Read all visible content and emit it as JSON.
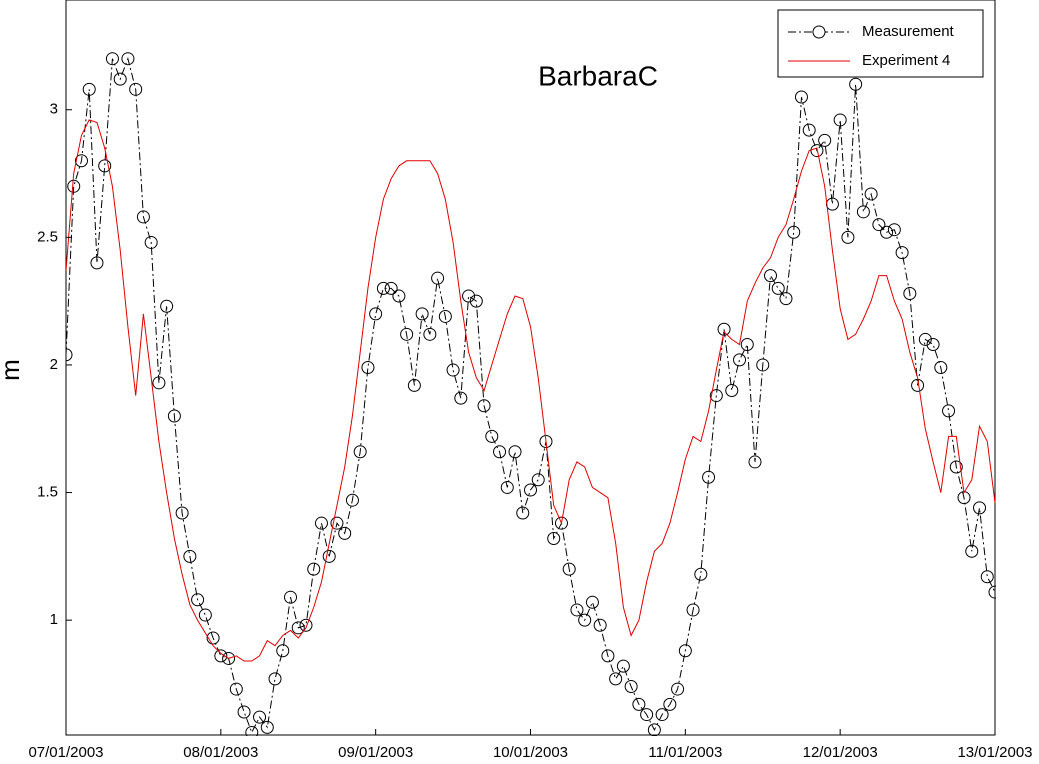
{
  "chart_data": {
    "type": "line",
    "title": "BarbaraC",
    "ylabel": "m",
    "x": [
      0,
      0.05,
      0.1,
      0.15,
      0.2,
      0.25,
      0.3,
      0.35,
      0.4,
      0.45,
      0.5,
      0.55,
      0.6,
      0.65,
      0.7,
      0.75,
      0.8,
      0.85,
      0.9,
      0.95,
      1,
      1.05,
      1.1,
      1.15,
      1.2,
      1.25,
      1.3,
      1.35,
      1.4,
      1.45,
      1.5,
      1.55,
      1.6,
      1.65,
      1.7,
      1.75,
      1.8,
      1.85,
      1.9,
      1.95,
      2,
      2.05,
      2.1,
      2.15,
      2.2,
      2.25,
      2.3,
      2.35,
      2.4,
      2.45,
      2.5,
      2.55,
      2.6,
      2.65,
      2.7,
      2.75,
      2.8,
      2.85,
      2.9,
      2.95,
      3,
      3.05,
      3.1,
      3.15,
      3.2,
      3.25,
      3.3,
      3.35,
      3.4,
      3.45,
      3.5,
      3.55,
      3.6,
      3.65,
      3.7,
      3.75,
      3.8,
      3.85,
      3.9,
      3.95,
      4,
      4.05,
      4.1,
      4.15,
      4.2,
      4.25,
      4.3,
      4.35,
      4.4,
      4.45,
      4.5,
      4.55,
      4.6,
      4.65,
      4.7,
      4.75,
      4.8,
      4.85,
      4.9,
      4.95,
      5,
      5.05,
      5.1,
      5.15,
      5.2,
      5.25,
      5.3,
      5.35,
      5.4,
      5.45,
      5.5,
      5.55,
      5.6,
      5.65,
      5.7,
      5.75,
      5.8,
      5.85,
      5.9,
      5.95,
      6
    ],
    "series": [
      {
        "name": "Measurement",
        "color": "#000000",
        "linestyle": "dash-dot",
        "marker": "circle",
        "values": [
          2.04,
          2.7,
          2.8,
          3.08,
          2.4,
          2.78,
          3.2,
          3.12,
          3.2,
          3.08,
          2.58,
          2.48,
          1.93,
          2.23,
          1.8,
          1.42,
          1.25,
          1.08,
          1.02,
          0.93,
          0.86,
          0.85,
          0.73,
          0.64,
          0.56,
          0.62,
          0.58,
          0.77,
          0.88,
          1.09,
          0.97,
          0.98,
          1.2,
          1.38,
          1.25,
          1.38,
          1.34,
          1.47,
          1.66,
          1.99,
          2.2,
          2.3,
          2.3,
          2.27,
          2.12,
          1.92,
          2.2,
          2.12,
          2.34,
          2.19,
          1.98,
          1.87,
          2.27,
          2.25,
          1.84,
          1.72,
          1.66,
          1.52,
          1.66,
          1.42,
          1.51,
          1.55,
          1.7,
          1.32,
          1.38,
          1.2,
          1.04,
          1.0,
          1.07,
          0.98,
          0.86,
          0.77,
          0.82,
          0.74,
          0.67,
          0.63,
          0.57,
          0.63,
          0.67,
          0.73,
          0.88,
          1.04,
          1.18,
          1.56,
          1.88,
          2.14,
          1.9,
          2.02,
          2.08,
          1.62,
          2.0,
          2.35,
          2.3,
          2.26,
          2.52,
          3.05,
          2.92,
          2.84,
          2.88,
          2.63,
          2.96,
          2.5,
          3.1,
          2.6,
          2.67,
          2.55,
          2.52,
          2.53,
          2.44,
          2.28,
          1.92,
          2.1,
          2.08,
          1.99,
          1.82,
          1.6,
          1.48,
          1.27,
          1.44,
          1.17,
          1.11
        ]
      },
      {
        "name": "Experiment 4",
        "color": "#e00000",
        "linestyle": "solid",
        "values": [
          2.37,
          2.75,
          2.9,
          2.96,
          2.95,
          2.85,
          2.7,
          2.45,
          2.15,
          1.88,
          2.2,
          1.95,
          1.7,
          1.5,
          1.32,
          1.18,
          1.06,
          1.0,
          0.95,
          0.9,
          0.87,
          0.85,
          0.86,
          0.84,
          0.84,
          0.86,
          0.92,
          0.9,
          0.94,
          0.96,
          0.93,
          0.97,
          1.05,
          1.15,
          1.3,
          1.45,
          1.6,
          1.8,
          2.05,
          2.3,
          2.5,
          2.65,
          2.73,
          2.78,
          2.8,
          2.8,
          2.8,
          2.8,
          2.75,
          2.65,
          2.48,
          2.25,
          2.05,
          1.95,
          1.9,
          2.0,
          2.1,
          2.2,
          2.27,
          2.26,
          2.15,
          1.95,
          1.7,
          1.45,
          1.38,
          1.55,
          1.62,
          1.6,
          1.52,
          1.5,
          1.48,
          1.3,
          1.05,
          0.94,
          1.0,
          1.15,
          1.27,
          1.3,
          1.38,
          1.5,
          1.63,
          1.72,
          1.7,
          1.82,
          1.98,
          2.13,
          2.1,
          2.08,
          2.25,
          2.32,
          2.38,
          2.42,
          2.5,
          2.55,
          2.65,
          2.76,
          2.84,
          2.85,
          2.7,
          2.45,
          2.22,
          2.1,
          2.12,
          2.18,
          2.25,
          2.35,
          2.35,
          2.25,
          2.18,
          2.05,
          1.95,
          1.75,
          1.62,
          1.5,
          1.72,
          1.72,
          1.5,
          1.55,
          1.76,
          1.7,
          1.46
        ]
      }
    ],
    "xlim": [
      0,
      6
    ],
    "xticks": [
      {
        "value": 0,
        "label": "07/01/2003"
      },
      {
        "value": 1,
        "label": "08/01/2003"
      },
      {
        "value": 2,
        "label": "09/01/2003"
      },
      {
        "value": 3,
        "label": "10/01/2003"
      },
      {
        "value": 4,
        "label": "11/01/2003"
      },
      {
        "value": 5,
        "label": "12/01/2003"
      },
      {
        "value": 6,
        "label": "13/01/2003"
      }
    ],
    "ylim": [
      0.55,
      3.43
    ],
    "yticks": [
      1,
      1.5,
      2,
      2.5,
      3
    ],
    "legend": "upper right"
  }
}
